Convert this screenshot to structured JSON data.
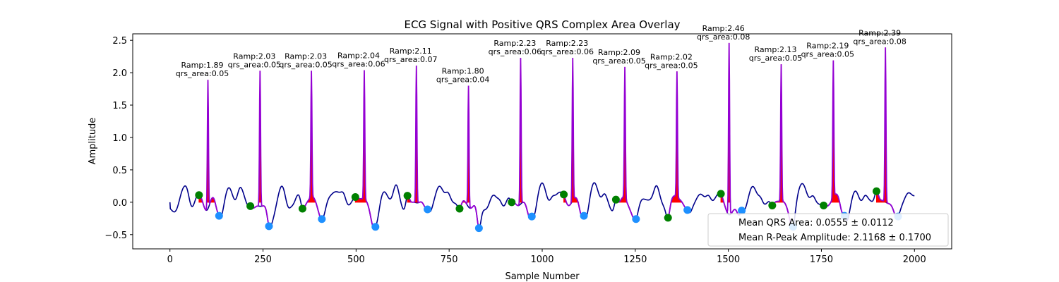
{
  "chart_data": {
    "type": "line",
    "title": "ECG Signal with Positive QRS Complex Area Overlay",
    "xlabel": "Sample Number",
    "ylabel": "Amplitude",
    "xlim": [
      -100,
      2100
    ],
    "ylim": [
      -0.72,
      2.6
    ],
    "xticks": [
      0,
      250,
      500,
      750,
      1000,
      1250,
      1500,
      1750,
      2000
    ],
    "yticks": [
      -0.5,
      0.0,
      0.5,
      1.0,
      1.5,
      2.0,
      2.5
    ],
    "xtick_labels": [
      "0",
      "250",
      "500",
      "750",
      "1000",
      "1250",
      "1500",
      "1750",
      "2000"
    ],
    "ytick_labels": [
      "−0.5",
      "0.0",
      "0.5",
      "1.0",
      "1.5",
      "2.0",
      "2.5"
    ],
    "grid": false,
    "colors": {
      "signal": "#00008b",
      "qrs_segment": "#9400d3",
      "qrs_fill": "#ff0000",
      "onset_marker": "#008000",
      "offset_marker": "#1e90ff"
    },
    "beats": [
      {
        "peak_x": 102,
        "ramp": 1.89,
        "onset": [
          78,
          0.11
        ],
        "offset": [
          132,
          -0.21
        ],
        "ramp_label": "Ramp:1.89",
        "area_label": "qrs_area:0.05"
      },
      {
        "peak_x": 242,
        "ramp": 2.03,
        "onset": [
          216,
          -0.06
        ],
        "offset": [
          266,
          -0.37
        ],
        "ramp_label": "Ramp:2.03",
        "area_label": "qrs_area:0.05"
      },
      {
        "peak_x": 380,
        "ramp": 2.03,
        "onset": [
          356,
          -0.1
        ],
        "offset": [
          408,
          -0.26
        ],
        "ramp_label": "Ramp:2.03",
        "area_label": "qrs_area:0.05"
      },
      {
        "peak_x": 522,
        "ramp": 2.04,
        "onset": [
          498,
          0.08
        ],
        "offset": [
          552,
          -0.38
        ],
        "ramp_label": "Ramp:2.04",
        "area_label": "qrs_area:0.06"
      },
      {
        "peak_x": 662,
        "ramp": 2.11,
        "onset": [
          638,
          0.1
        ],
        "offset": [
          692,
          -0.11
        ],
        "ramp_label": "Ramp:2.11",
        "area_label": "qrs_area:0.07"
      },
      {
        "peak_x": 802,
        "ramp": 1.8,
        "onset": [
          778,
          -0.1
        ],
        "offset": [
          830,
          -0.4
        ],
        "ramp_label": "Ramp:1.80",
        "area_label": "qrs_area:0.04"
      },
      {
        "peak_x": 942,
        "ramp": 2.23,
        "onset": [
          918,
          0.0
        ],
        "offset": [
          972,
          -0.22
        ],
        "ramp_label": "Ramp:2.23",
        "area_label": "qrs_area:0.06"
      },
      {
        "peak_x": 1082,
        "ramp": 2.23,
        "onset": [
          1058,
          0.12
        ],
        "offset": [
          1112,
          -0.21
        ],
        "ramp_label": "Ramp:2.23",
        "area_label": "qrs_area:0.06"
      },
      {
        "peak_x": 1222,
        "ramp": 2.09,
        "onset": [
          1198,
          0.04
        ],
        "offset": [
          1252,
          -0.26
        ],
        "ramp_label": "Ramp:2.09",
        "area_label": "qrs_area:0.05"
      },
      {
        "peak_x": 1362,
        "ramp": 2.02,
        "onset": [
          1338,
          -0.24
        ],
        "offset": [
          1390,
          -0.12
        ],
        "ramp_label": "Ramp:2.02",
        "area_label": "qrs_area:0.05"
      },
      {
        "peak_x": 1502,
        "ramp": 2.46,
        "onset": [
          1480,
          0.13
        ],
        "offset": [
          1536,
          -0.13
        ],
        "ramp_label": "Ramp:2.46",
        "area_label": "qrs_area:0.08"
      },
      {
        "peak_x": 1642,
        "ramp": 2.13,
        "onset": [
          1618,
          -0.05
        ],
        "offset": [
          1674,
          -0.38
        ],
        "ramp_label": "Ramp:2.13",
        "area_label": "qrs_area:0.05"
      },
      {
        "peak_x": 1782,
        "ramp": 2.19,
        "onset": [
          1756,
          -0.05
        ],
        "offset": [
          1812,
          -0.21
        ],
        "ramp_label": "Ramp:2.19",
        "area_label": "qrs_area:0.05"
      },
      {
        "peak_x": 1922,
        "ramp": 2.39,
        "onset": [
          1898,
          0.17
        ],
        "offset": [
          1956,
          -0.22
        ],
        "ramp_label": "Ramp:2.39",
        "area_label": "qrs_area:0.08"
      }
    ],
    "legend": {
      "placement": "lower-right",
      "entries": [
        "Mean QRS Area: 0.0555 ± 0.0112",
        "Mean R-Peak Amplitude: 2.1168 ± 0.1700"
      ]
    }
  }
}
